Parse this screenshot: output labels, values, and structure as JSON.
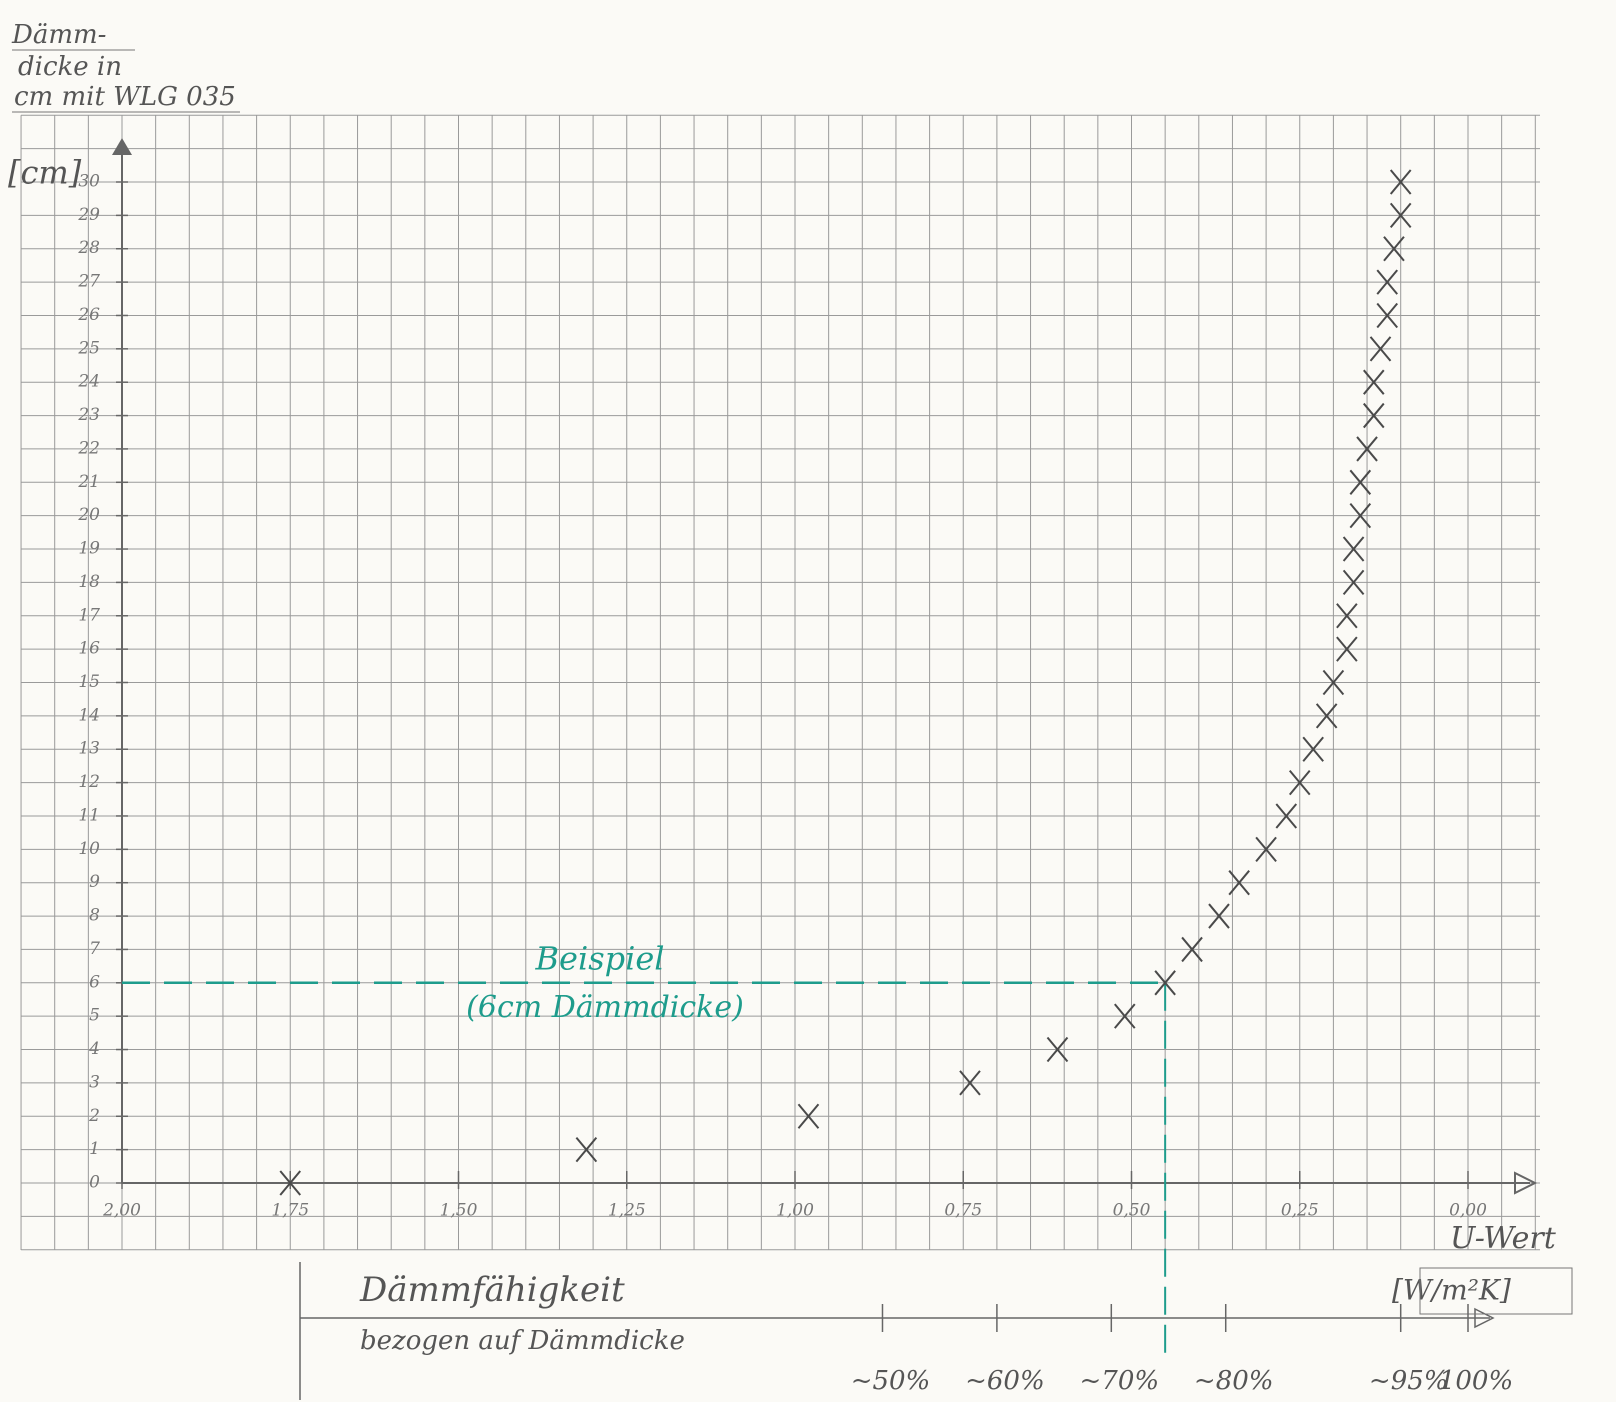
{
  "chart_data": {
    "type": "scatter",
    "ylabel": [
      "Dämm-",
      "dicke in",
      "cm mit WLG 035"
    ],
    "yunit": "[cm]",
    "xlabel": "U-Wert",
    "xunit": "[W/m²K]",
    "color": "#4a4a4a",
    "grid": true,
    "x": [
      1.75,
      1.31,
      0.98,
      0.74,
      0.61,
      0.51,
      0.45,
      0.41,
      0.37,
      0.34,
      0.3,
      0.27,
      0.25,
      0.23,
      0.21,
      0.2,
      0.18,
      0.18,
      0.17,
      0.17,
      0.16,
      0.16,
      0.15,
      0.14,
      0.14,
      0.13,
      0.12,
      0.12,
      0.11,
      0.1,
      0.1
    ],
    "values": [
      0,
      1,
      2,
      3,
      4,
      5,
      6,
      7,
      8,
      9,
      10,
      11,
      12,
      13,
      14,
      15,
      16,
      17,
      18,
      19,
      20,
      21,
      22,
      23,
      24,
      25,
      26,
      27,
      28,
      29,
      30
    ],
    "xlim": [
      2,
      0
    ],
    "ylim": [
      0,
      30
    ],
    "xticks": [
      {
        "value": 2,
        "label": "2,00"
      },
      {
        "value": 1.75,
        "label": "1,75"
      },
      {
        "value": 1.5,
        "label": "1,50"
      },
      {
        "value": 1.25,
        "label": "1,25"
      },
      {
        "value": 1,
        "label": "1,00"
      },
      {
        "value": 0.75,
        "label": "0,75"
      },
      {
        "value": 0.5,
        "label": "0,50"
      },
      {
        "value": 0.25,
        "label": "0,25"
      },
      {
        "value": 0,
        "label": "0,00"
      }
    ],
    "yticks": [
      0,
      1,
      2,
      3,
      4,
      5,
      6,
      7,
      8,
      9,
      10,
      11,
      12,
      13,
      14,
      15,
      16,
      17,
      18,
      19,
      20,
      21,
      22,
      23,
      24,
      25,
      26,
      27,
      28,
      29,
      30
    ],
    "annotation": {
      "text": "Beispiel",
      "subtext": "(6cm Dämmdicke)",
      "x": 0.45,
      "y": 6,
      "color": "#1e9c8c"
    },
    "efficiency_scale": {
      "title": "Dämmfähigkeit",
      "subtitle": "bezogen auf Dämmdicke",
      "ticks": [
        {
          "value": 0.87,
          "label": "~50%"
        },
        {
          "value": 0.7,
          "label": "~60%"
        },
        {
          "value": 0.53,
          "label": "~70%"
        },
        {
          "value": 0.36,
          "label": "~80%"
        },
        {
          "value": 0.1,
          "label": "~95%"
        },
        {
          "value": 0,
          "label": "100%"
        }
      ]
    }
  }
}
